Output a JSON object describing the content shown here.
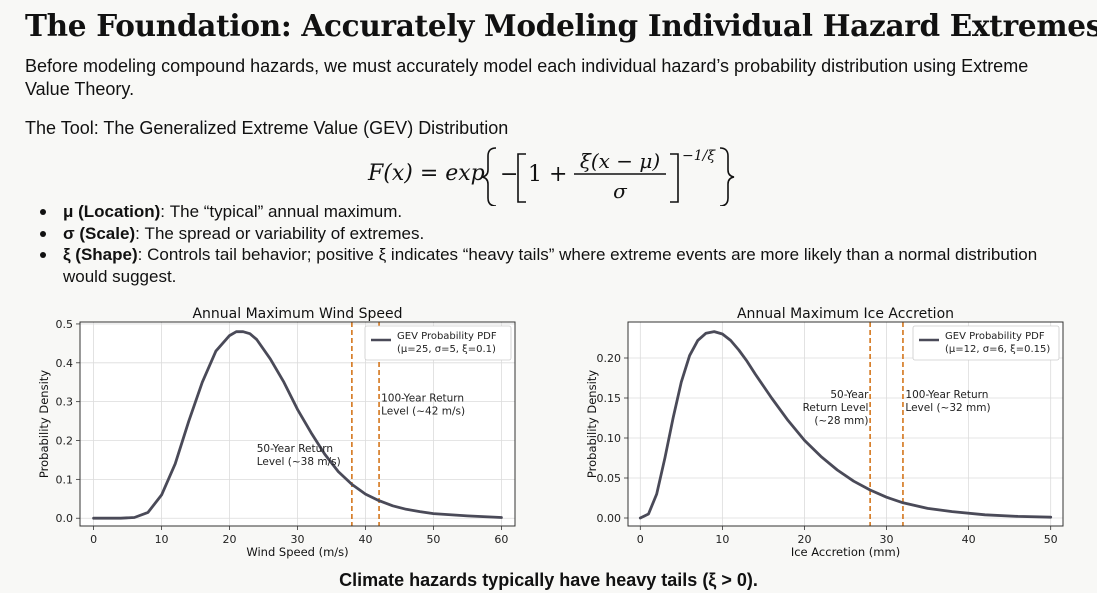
{
  "title": "The Foundation: Accurately Modeling Individual Hazard Extremes",
  "intro": "Before modeling compound hazards, we must accurately model each individual hazard’s probability distribution using Extreme Value Theory.",
  "tool_heading": "The Tool: The Generalized Extreme Value (GEV) Distribution",
  "formula": {
    "lhs": "F(x) = exp",
    "one_plus": "1 +",
    "numerator": "ξ(x − μ)",
    "denominator": "σ",
    "exponent": "−1/ξ"
  },
  "bullets": [
    {
      "term": "μ (Location)",
      "desc": ": The “typical” annual maximum."
    },
    {
      "term": "σ (Scale)",
      "desc": ": The spread or variability of extremes."
    },
    {
      "term": "ξ (Shape)",
      "desc": ": Controls tail behavior; positive ξ indicates “heavy tails” where extreme events are more likely than a normal distribution would suggest."
    }
  ],
  "footer": "Climate hazards typically have heavy tails (ξ > 0).",
  "colors": {
    "curve": "#4a4a58",
    "return_line": "#d4761c",
    "grid": "#dcdcdc",
    "frame": "#333333"
  },
  "chart_data": [
    {
      "type": "line",
      "title": "Annual Maximum Wind Speed",
      "xlabel": "Wind Speed (m/s)",
      "ylabel": "Probability Density",
      "xlim": [
        -2,
        62
      ],
      "ylim": [
        -0.02,
        0.505
      ],
      "xticks": [
        0,
        10,
        20,
        30,
        40,
        50,
        60
      ],
      "yticks": [
        0.0,
        0.1,
        0.2,
        0.3,
        0.4,
        0.5
      ],
      "ytick_decimals": 1,
      "grid": true,
      "legend_position": "top-right",
      "series": [
        {
          "name": "GEV Probability PDF",
          "name_line2": "(μ=25, σ=5, ξ=0.1)",
          "x": [
            0,
            4,
            6,
            8,
            10,
            12,
            14,
            16,
            18,
            20,
            21,
            22,
            23,
            24,
            26,
            28,
            30,
            32,
            34,
            36,
            38,
            40,
            42,
            44,
            46,
            48,
            50,
            55,
            60
          ],
          "y": [
            0.0,
            0.0,
            0.002,
            0.015,
            0.06,
            0.14,
            0.25,
            0.35,
            0.43,
            0.47,
            0.48,
            0.48,
            0.475,
            0.46,
            0.41,
            0.35,
            0.28,
            0.22,
            0.165,
            0.12,
            0.087,
            0.062,
            0.045,
            0.032,
            0.023,
            0.017,
            0.012,
            0.006,
            0.002
          ]
        }
      ],
      "return_levels": [
        {
          "x": 38,
          "label_lines": [
            "50-Year Return",
            "Level (~38 m/s)"
          ],
          "label_x": 24,
          "label_y": 0.17,
          "anchor": "start"
        },
        {
          "x": 42,
          "label_lines": [
            "100-Year Return",
            "Level (~42 m/s)"
          ],
          "label_x": 42.3,
          "label_y": 0.3,
          "anchor": "start"
        }
      ]
    },
    {
      "type": "line",
      "title": "Annual Maximum Ice Accretion",
      "xlabel": "Ice Accretion (mm)",
      "ylabel": "Probability Density",
      "xlim": [
        -1.5,
        51.5
      ],
      "ylim": [
        -0.01,
        0.245
      ],
      "xticks": [
        0,
        10,
        20,
        30,
        40,
        50
      ],
      "yticks": [
        0.0,
        0.05,
        0.1,
        0.15,
        0.2
      ],
      "ytick_decimals": 2,
      "grid": true,
      "legend_position": "top-right",
      "series": [
        {
          "name": "GEV Probability PDF",
          "name_line2": "(μ=12, σ=6, ξ=0.15)",
          "x": [
            0,
            1,
            2,
            3,
            4,
            5,
            6,
            7,
            8,
            9,
            10,
            11,
            12,
            13,
            14,
            16,
            18,
            20,
            22,
            24,
            26,
            28,
            30,
            32,
            35,
            38,
            42,
            46,
            50
          ],
          "y": [
            0.0,
            0.005,
            0.03,
            0.075,
            0.125,
            0.17,
            0.203,
            0.222,
            0.231,
            0.233,
            0.23,
            0.222,
            0.21,
            0.196,
            0.18,
            0.15,
            0.122,
            0.097,
            0.077,
            0.06,
            0.046,
            0.035,
            0.026,
            0.019,
            0.012,
            0.008,
            0.004,
            0.002,
            0.001
          ]
        }
      ],
      "return_levels": [
        {
          "x": 28,
          "label_lines": [
            "50-Year",
            "Return Level",
            "(~28 mm)"
          ],
          "label_x": 27.8,
          "label_y": 0.15,
          "anchor": "end"
        },
        {
          "x": 32,
          "label_lines": [
            "100-Year Return",
            "Level (~32 mm)"
          ],
          "label_x": 32.3,
          "label_y": 0.15,
          "anchor": "start"
        }
      ]
    }
  ]
}
